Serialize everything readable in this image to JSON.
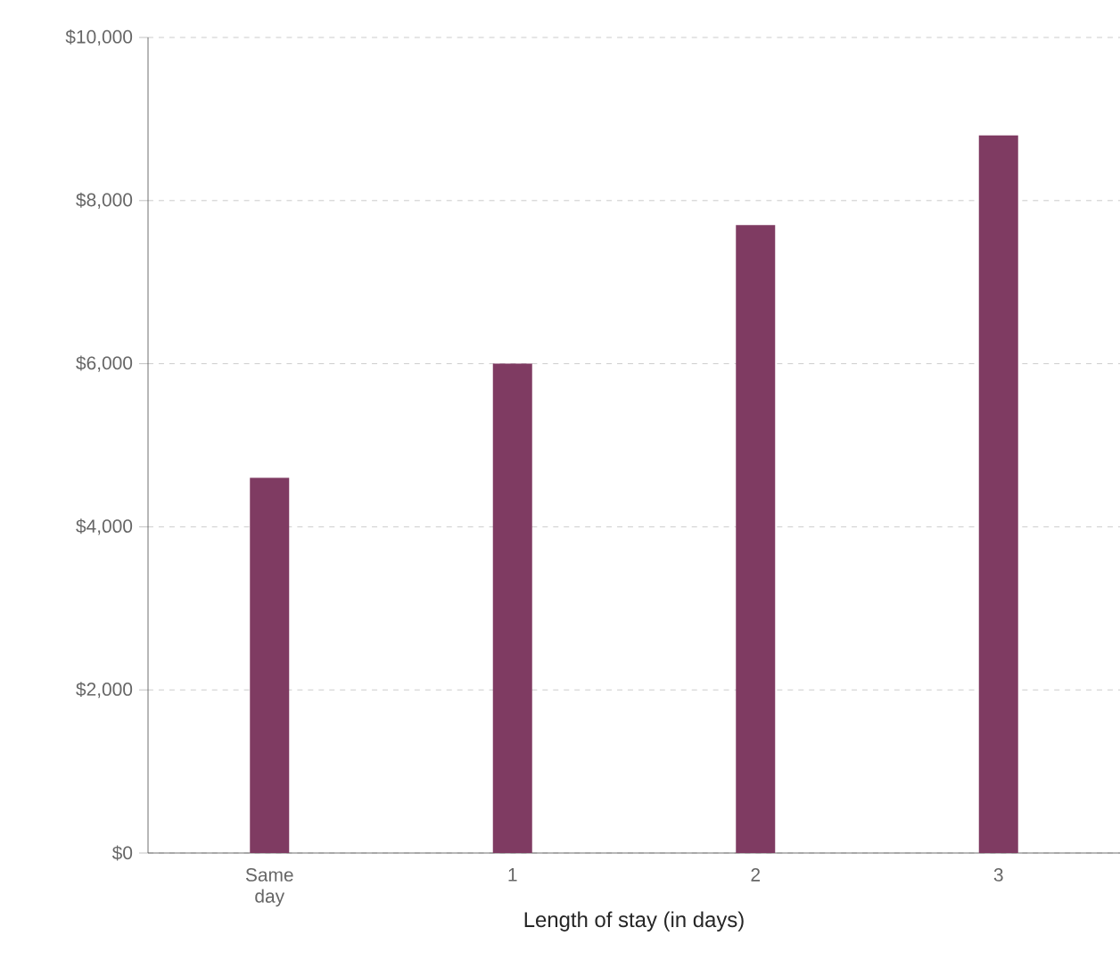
{
  "chart_data": {
    "type": "bar",
    "xlabel": "Length of stay (in days)",
    "categories": [
      "Same day",
      "1",
      "2",
      "3"
    ],
    "values": [
      4600,
      6000,
      7700,
      8800
    ],
    "color": "#7f3b62",
    "ylim": [
      0,
      10000
    ],
    "yticks": [
      {
        "value": 0,
        "label": "$0"
      },
      {
        "value": 2000,
        "label": "$2,000"
      },
      {
        "value": 4000,
        "label": "$4,000"
      },
      {
        "value": 6000,
        "label": "$6,000"
      },
      {
        "value": 8000,
        "label": "$8,000"
      },
      {
        "value": 10000,
        "label": "$10,000"
      }
    ],
    "grid": "y"
  }
}
